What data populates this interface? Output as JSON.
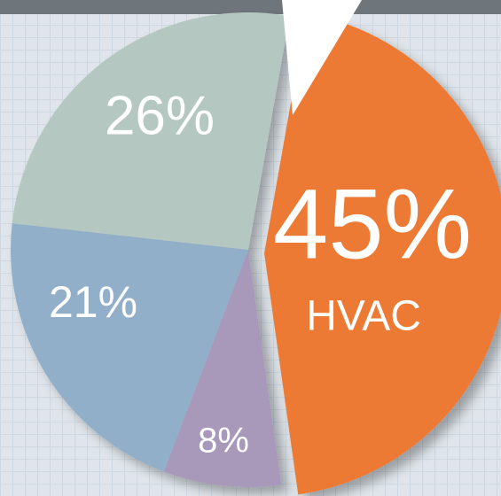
{
  "chart_data": {
    "type": "pie",
    "categories": [
      "HVAC",
      null,
      null,
      null
    ],
    "values": [
      45,
      8,
      21,
      26
    ],
    "value_labels": [
      "45%",
      "8%",
      "21%",
      "26%"
    ],
    "colors": [
      "#ec7a35",
      "#a898ba",
      "#92afc9",
      "#b4c7c0"
    ]
  }
}
